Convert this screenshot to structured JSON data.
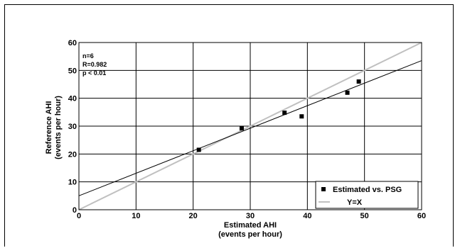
{
  "chart_data": {
    "type": "scatter",
    "xlabel": [
      "Estimated AHI",
      "(events per hour)"
    ],
    "ylabel": [
      "Reference AHI",
      "(events per hour)"
    ],
    "xlim": [
      0,
      60
    ],
    "ylim": [
      0,
      60
    ],
    "xticks": [
      0,
      10,
      20,
      30,
      40,
      50,
      60
    ],
    "yticks": [
      0,
      10,
      20,
      30,
      40,
      50,
      60
    ],
    "grid": true,
    "annotations": [
      "n=6",
      "R=0.982",
      "p < 0.01"
    ],
    "legend_position": "bottom-right",
    "series": [
      {
        "name": "Estimated vs. PSG",
        "kind": "points",
        "color": "#000000",
        "x": [
          21,
          28.5,
          36,
          39,
          47,
          49
        ],
        "y": [
          21.5,
          29.2,
          34.8,
          33.5,
          42,
          46
        ]
      },
      {
        "name": "Y=X",
        "kind": "line",
        "color": "#c0c0c0",
        "x": [
          0,
          60
        ],
        "y": [
          0,
          60
        ]
      },
      {
        "kind": "line",
        "color": "#000000",
        "x": [
          0,
          60
        ],
        "y": [
          5,
          53.5
        ]
      }
    ]
  }
}
